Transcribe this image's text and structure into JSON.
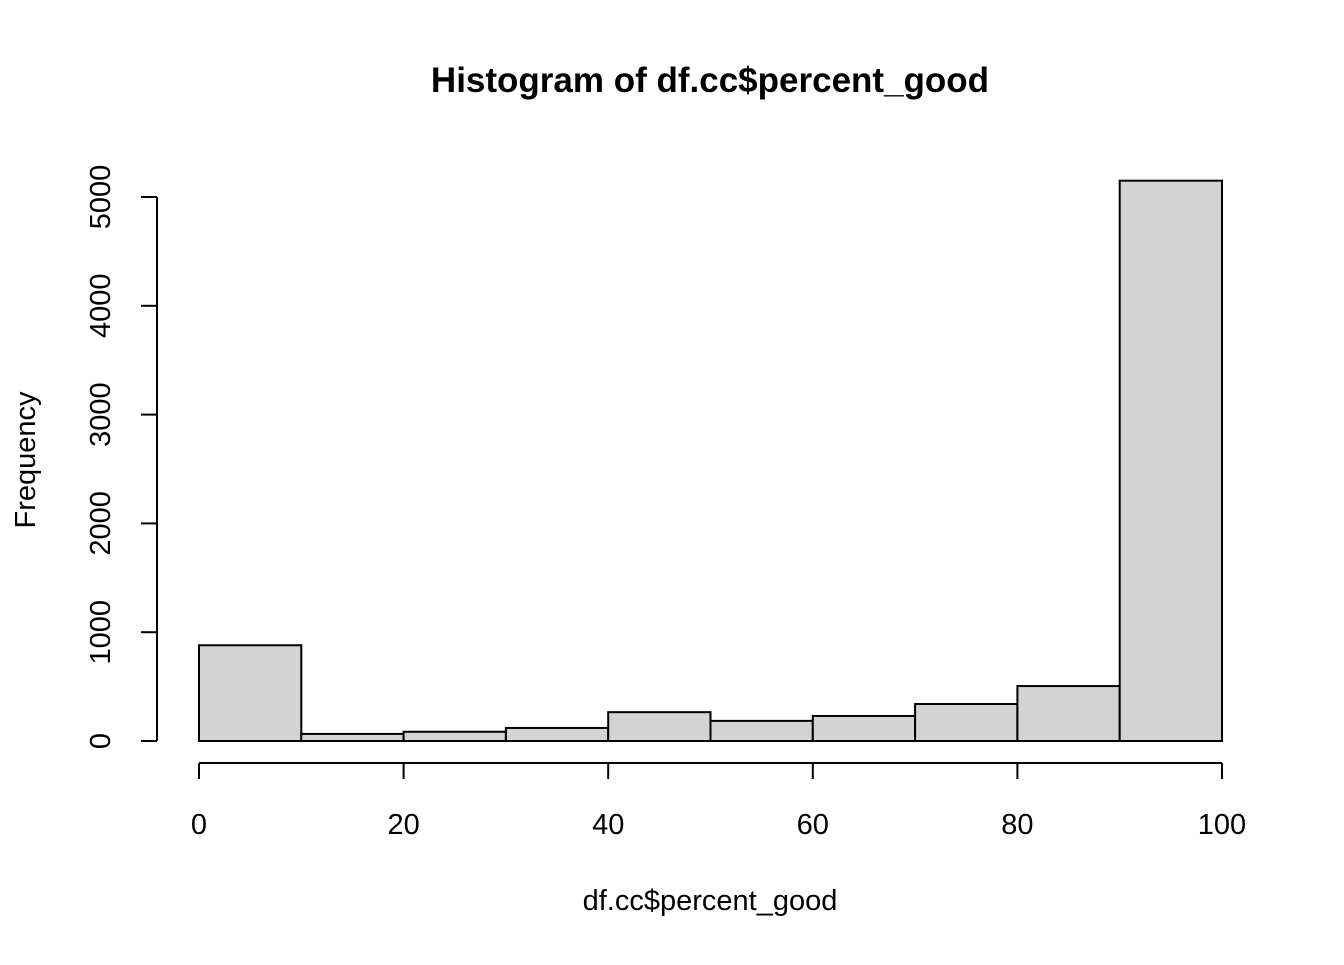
{
  "chart_data": {
    "type": "bar",
    "title": "Histogram of df.cc$percent_good",
    "xlabel": "df.cc$percent_good",
    "ylabel": "Frequency",
    "bins": [
      {
        "from": 0,
        "to": 10,
        "count": 880
      },
      {
        "from": 10,
        "to": 20,
        "count": 65
      },
      {
        "from": 20,
        "to": 30,
        "count": 85
      },
      {
        "from": 30,
        "to": 40,
        "count": 120
      },
      {
        "from": 40,
        "to": 50,
        "count": 265
      },
      {
        "from": 50,
        "to": 60,
        "count": 185
      },
      {
        "from": 60,
        "to": 70,
        "count": 230
      },
      {
        "from": 70,
        "to": 80,
        "count": 340
      },
      {
        "from": 80,
        "to": 90,
        "count": 505
      },
      {
        "from": 90,
        "to": 100,
        "count": 5150
      }
    ],
    "xlim": [
      0,
      100
    ],
    "ylim": [
      0,
      5150
    ],
    "xticks": [
      "0",
      "20",
      "40",
      "60",
      "80",
      "100"
    ],
    "yticks": [
      "0",
      "1000",
      "2000",
      "3000",
      "4000",
      "5000"
    ],
    "bar_fill": "#d3d3d3",
    "bar_stroke": "#000000",
    "grid": false,
    "legend": "none"
  }
}
